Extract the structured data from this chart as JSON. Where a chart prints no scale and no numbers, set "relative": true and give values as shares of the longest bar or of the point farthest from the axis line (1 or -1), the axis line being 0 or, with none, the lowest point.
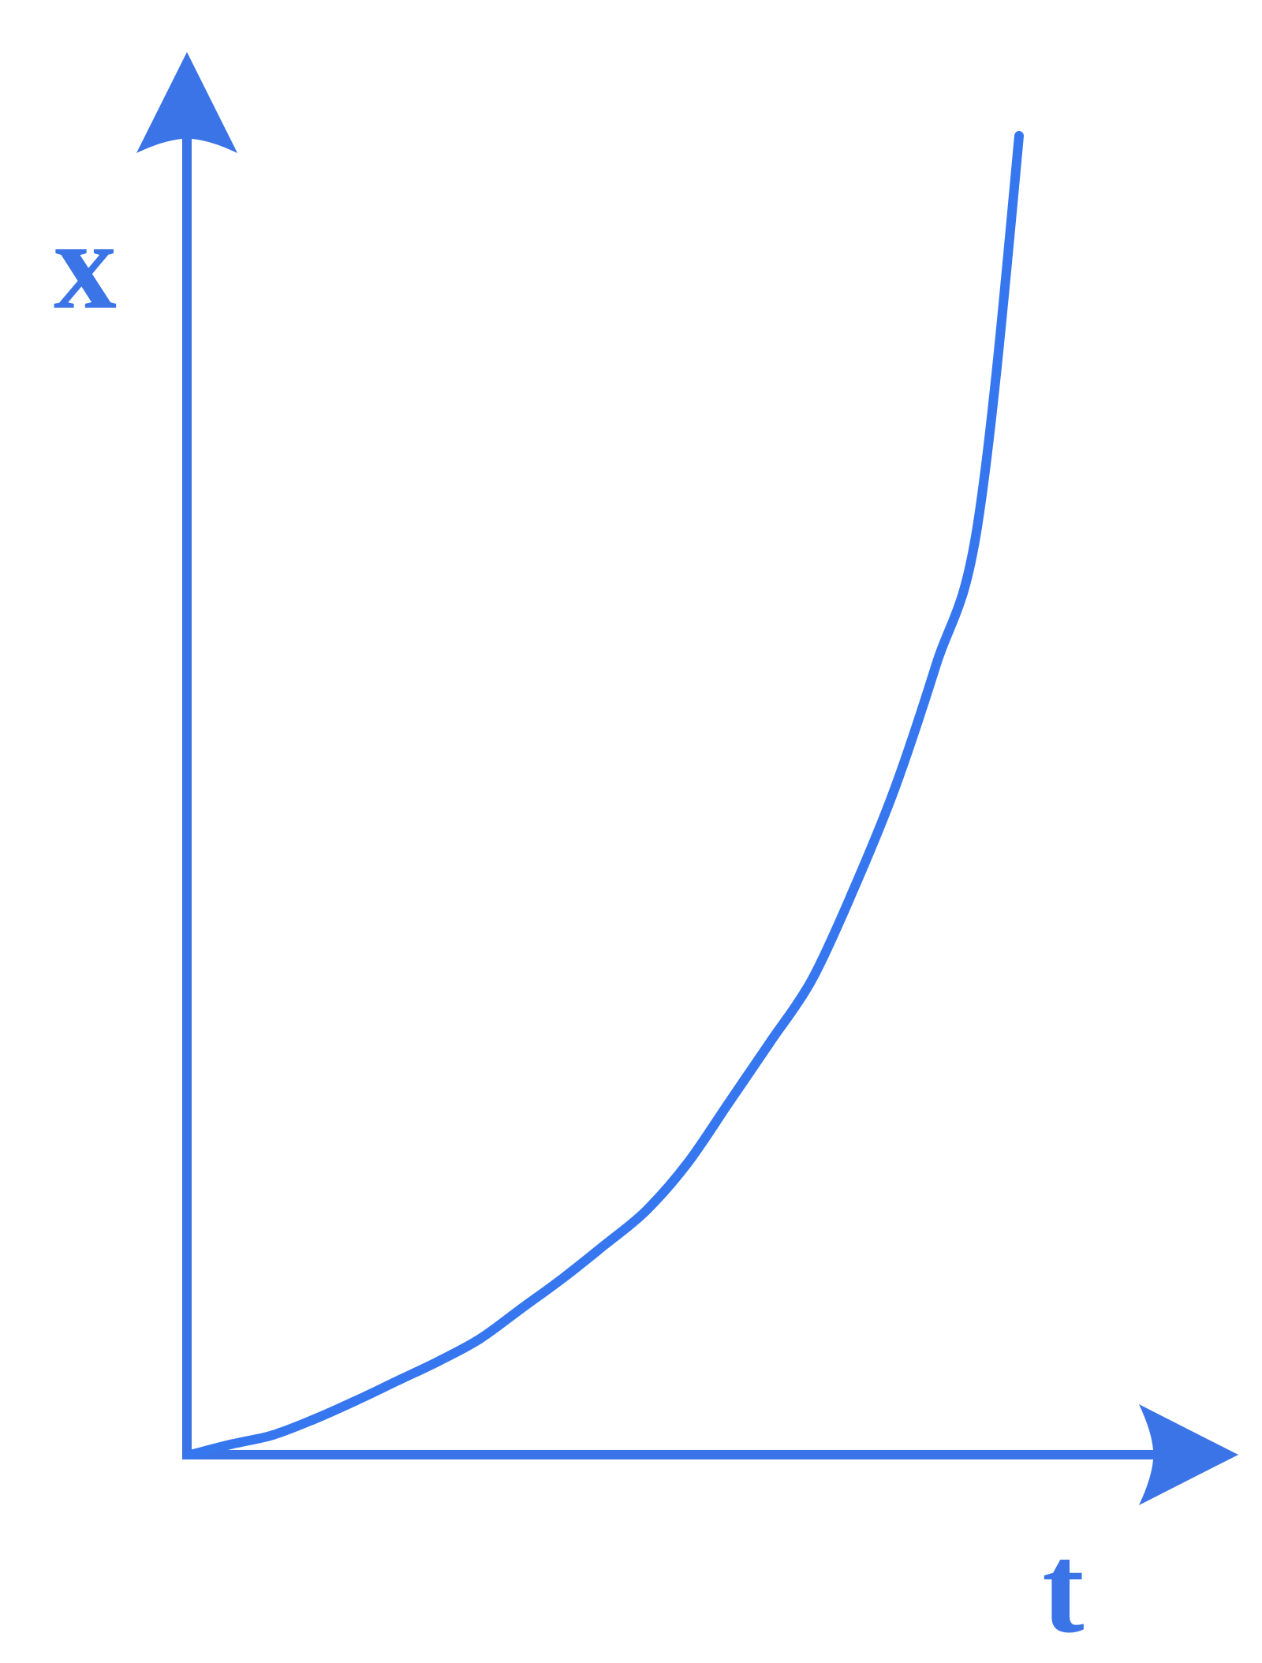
{
  "chart_data": {
    "type": "line",
    "relative": true,
    "xlabel": "t",
    "ylabel": "x",
    "categories": [
      null,
      null,
      null,
      null,
      null,
      null,
      null,
      null,
      null,
      null,
      null,
      null,
      null,
      null,
      null,
      null,
      null,
      null,
      null,
      null,
      null
    ],
    "series": [
      {
        "color": "#3677f0",
        "values": [
          0,
          0.008,
          0.015,
          0.027,
          0.041,
          0.056,
          0.071,
          0.088,
          0.111,
          0.134,
          0.159,
          0.185,
          0.221,
          0.267,
          0.313,
          0.36,
          0.428,
          0.505,
          0.599,
          0.705,
          1
        ]
      }
    ],
    "legend": false,
    "grid": false,
    "marker": "none",
    "line_style": "solid"
  }
}
